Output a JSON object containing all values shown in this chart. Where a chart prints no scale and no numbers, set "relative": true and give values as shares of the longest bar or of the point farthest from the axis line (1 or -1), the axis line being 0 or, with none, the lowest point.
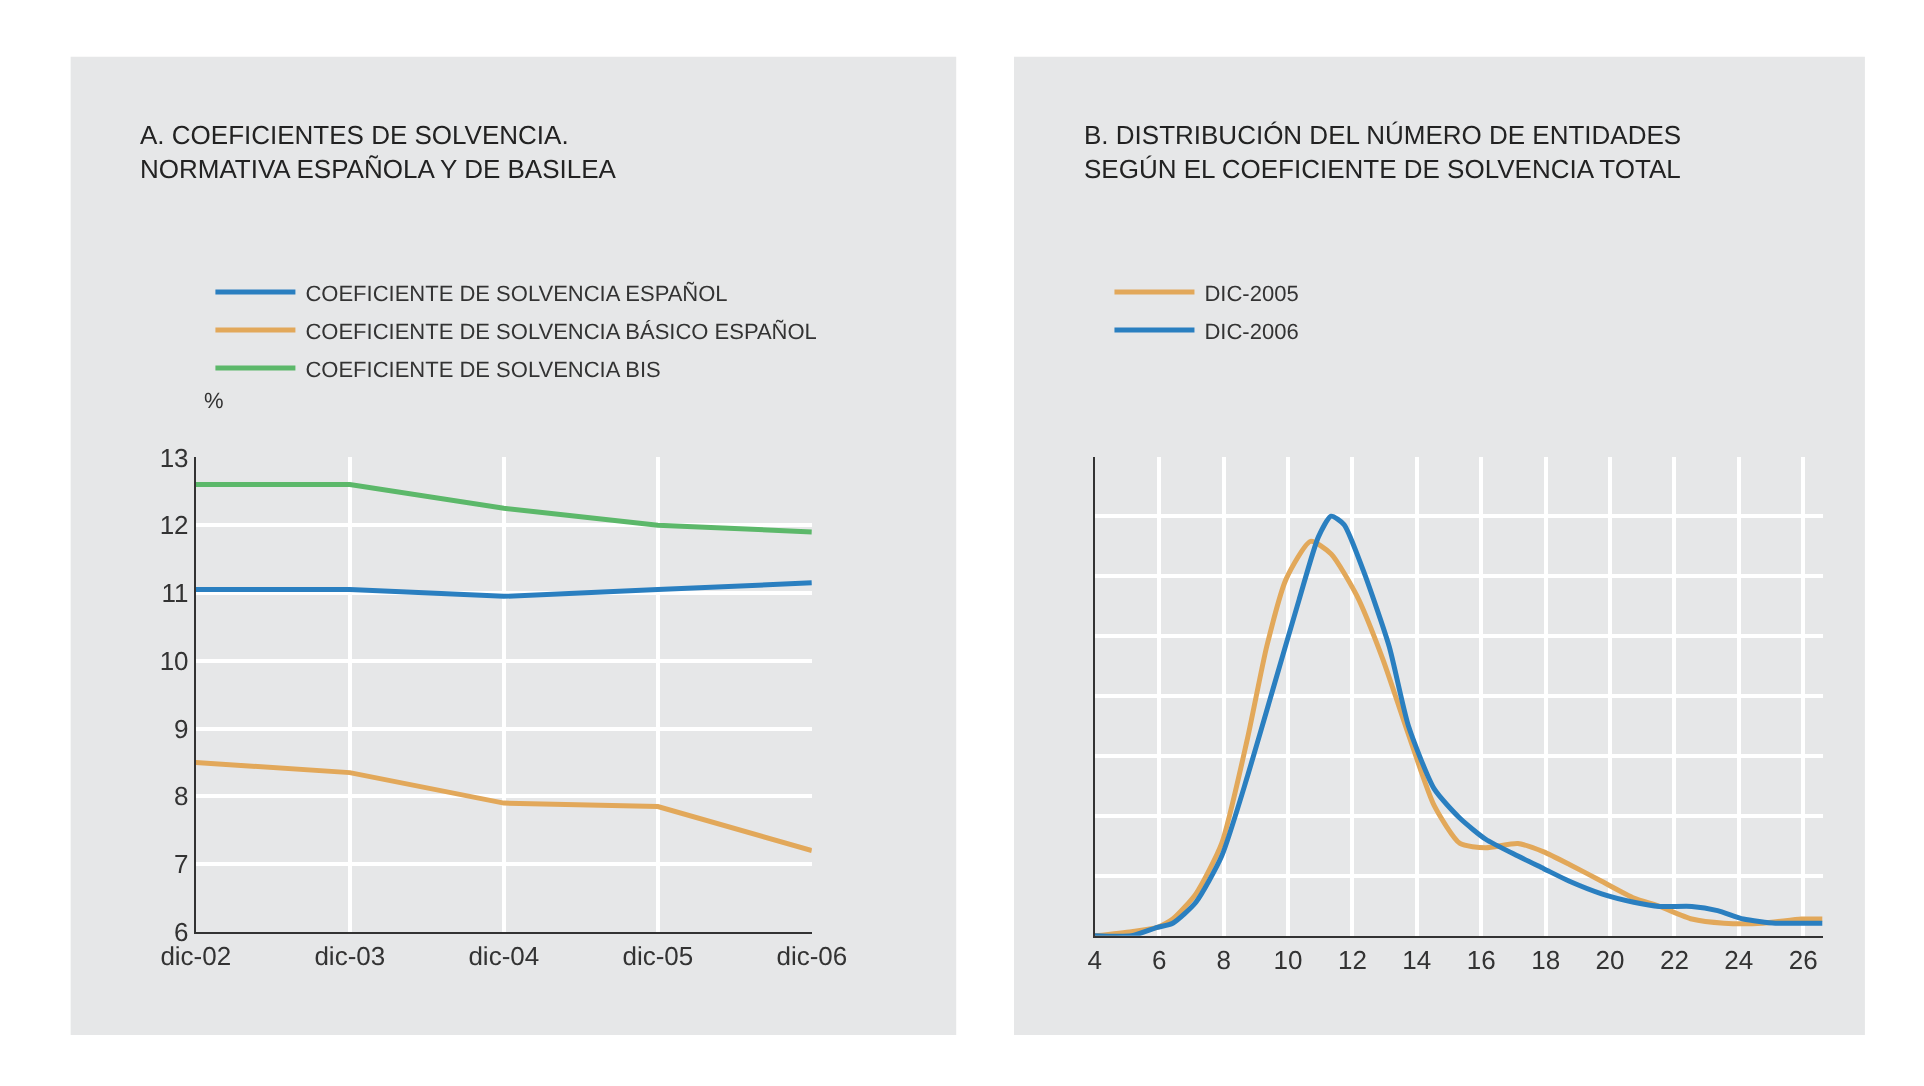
{
  "chart_data": [
    {
      "type": "line",
      "title": "A. COEFICIENTES DE SOLVENCIA.\nNORMATIVA ESPAÑOLA Y DE BASILEA",
      "ylabel": "%",
      "categories": [
        "dic-02",
        "dic-03",
        "dic-04",
        "dic-05",
        "dic-06"
      ],
      "series": [
        {
          "name": "COEFICIENTE DE SOLVENCIA ESPAÑOL",
          "color": "#2a7fc0",
          "values": [
            11.05,
            11.05,
            10.95,
            11.05,
            11.15
          ]
        },
        {
          "name": "COEFICIENTE DE SOLVENCIA BÁSICO ESPAÑOL",
          "color": "#e2a85a",
          "values": [
            8.5,
            8.35,
            7.9,
            7.85,
            7.2
          ]
        },
        {
          "name": "COEFICIENTE DE SOLVENCIA BIS",
          "color": "#5cb86a",
          "values": [
            12.6,
            12.6,
            12.25,
            12.0,
            11.9
          ]
        }
      ],
      "ylim": [
        6,
        13
      ],
      "yticks": [
        6,
        7,
        8,
        9,
        10,
        11,
        12,
        13
      ],
      "grid": true,
      "legend": "top",
      "marker": "none",
      "line_style": "solid"
    },
    {
      "type": "line",
      "title": "B. DISTRIBUCIÓN DEL NÚMERO DE ENTIDADES\nSEGÚN EL COEFICIENTE DE SOLVENCIA TOTAL",
      "relative": true,
      "series": [
        {
          "name": "DIC-2005",
          "color": "#e2a85a",
          "x": [
            4.0,
            5.14,
            5.94,
            6.42,
            7.14,
            7.94,
            8.74,
            9.34,
            9.94,
            10.7,
            11.34,
            12.14,
            12.94,
            13.74,
            14.54,
            15.34,
            16.14,
            17.14,
            17.94,
            18.74,
            19.74,
            20.74,
            21.54,
            22.54,
            23.54,
            24.74,
            25.94,
            26.6
          ],
          "values": [
            0,
            0.01,
            0.02,
            0.04,
            0.1,
            0.22,
            0.47,
            0.69,
            0.85,
            0.94,
            0.91,
            0.81,
            0.66,
            0.48,
            0.31,
            0.22,
            0.21,
            0.22,
            0.2,
            0.17,
            0.13,
            0.09,
            0.07,
            0.04,
            0.03,
            0.03,
            0.04,
            0.04
          ]
        },
        {
          "name": "DIC-2006",
          "color": "#2a7fc0",
          "x": [
            4.0,
            5.14,
            5.94,
            6.42,
            7.14,
            7.94,
            8.74,
            9.54,
            10.34,
            10.94,
            11.34,
            11.74,
            12.34,
            13.14,
            13.74,
            14.54,
            15.34,
            16.14,
            17.14,
            17.94,
            18.74,
            19.74,
            20.74,
            21.54,
            22.54,
            23.34,
            24.14,
            25.14,
            25.94,
            26.6
          ],
          "values": [
            0,
            0.0,
            0.02,
            0.03,
            0.08,
            0.19,
            0.38,
            0.59,
            0.8,
            0.95,
            1,
            0.98,
            0.87,
            0.69,
            0.5,
            0.35,
            0.28,
            0.23,
            0.19,
            0.16,
            0.13,
            0.1,
            0.08,
            0.07,
            0.07,
            0.06,
            0.04,
            0.03,
            0.03,
            0.03
          ]
        }
      ],
      "xlim": [
        4,
        26.6
      ],
      "xticks": [
        4,
        6,
        8,
        10,
        12,
        14,
        16,
        18,
        20,
        22,
        24,
        26
      ],
      "grid": true,
      "legend": "top",
      "marker": "none",
      "line_style": "solid"
    }
  ]
}
